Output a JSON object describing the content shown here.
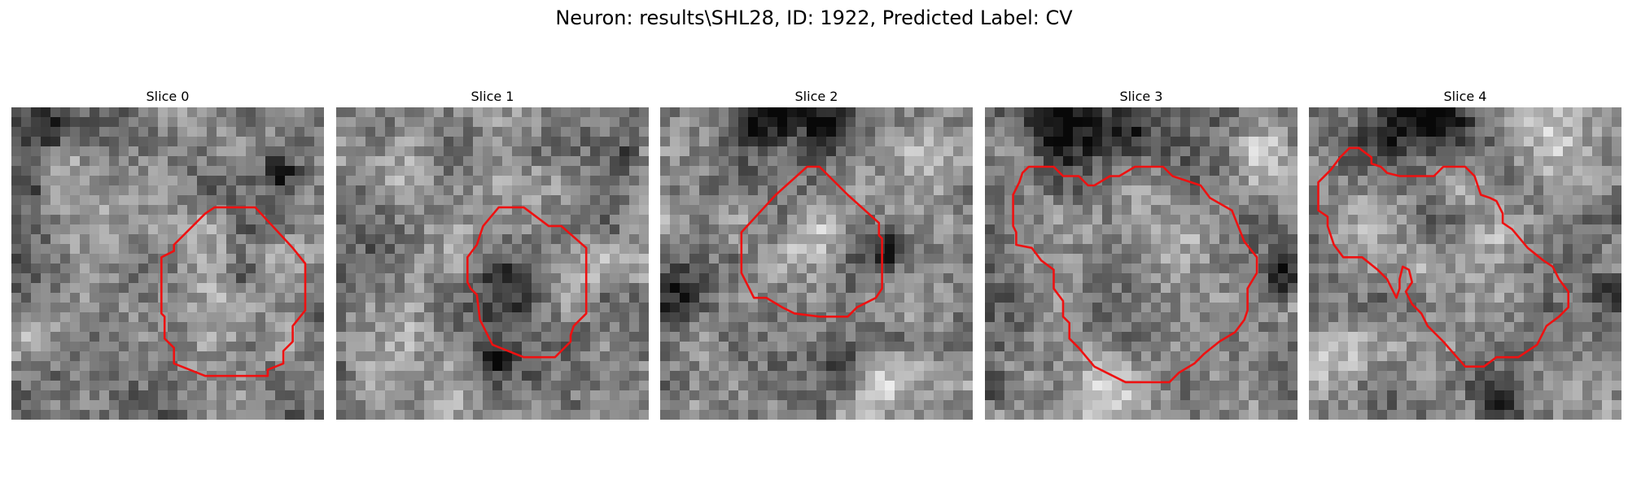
{
  "figure": {
    "title": "Neuron: results\\SHL28, ID: 1922, Predicted Label: CV"
  },
  "colors": {
    "contour": "#ee1111",
    "background": "#ffffff"
  },
  "slices": [
    {
      "title": "Slice 0",
      "seed": 11,
      "dark_spots": [
        [
          0.12,
          0.07,
          0.09
        ],
        [
          0.04,
          0.24,
          0.06
        ],
        [
          0.74,
          0.53,
          0.05
        ],
        [
          0.86,
          0.2,
          0.05
        ]
      ],
      "bright_spots": [
        [
          0.2,
          0.22,
          0.1
        ],
        [
          0.65,
          0.65,
          0.11
        ],
        [
          0.1,
          0.75,
          0.1
        ]
      ],
      "contour": [
        [
          0.65,
          0.32
        ],
        [
          0.78,
          0.32
        ],
        [
          0.9,
          0.45
        ],
        [
          0.94,
          0.5
        ],
        [
          0.94,
          0.65
        ],
        [
          0.9,
          0.7
        ],
        [
          0.9,
          0.75
        ],
        [
          0.87,
          0.78
        ],
        [
          0.87,
          0.82
        ],
        [
          0.82,
          0.84
        ],
        [
          0.82,
          0.86
        ],
        [
          0.62,
          0.86
        ],
        [
          0.52,
          0.82
        ],
        [
          0.52,
          0.77
        ],
        [
          0.49,
          0.74
        ],
        [
          0.49,
          0.67
        ],
        [
          0.48,
          0.66
        ],
        [
          0.48,
          0.48
        ],
        [
          0.52,
          0.46
        ],
        [
          0.52,
          0.44
        ],
        [
          0.62,
          0.34
        ]
      ]
    },
    {
      "title": "Slice 1",
      "seed": 23,
      "dark_spots": [
        [
          0.92,
          0.17,
          0.04
        ],
        [
          0.55,
          0.6,
          0.1
        ],
        [
          0.5,
          0.8,
          0.05
        ]
      ],
      "bright_spots": [
        [
          0.18,
          0.22,
          0.12
        ],
        [
          0.15,
          0.72,
          0.13
        ],
        [
          0.82,
          0.5,
          0.08
        ]
      ],
      "contour": [
        [
          0.52,
          0.32
        ],
        [
          0.6,
          0.32
        ],
        [
          0.68,
          0.38
        ],
        [
          0.72,
          0.38
        ],
        [
          0.8,
          0.45
        ],
        [
          0.8,
          0.66
        ],
        [
          0.76,
          0.7
        ],
        [
          0.75,
          0.73
        ],
        [
          0.75,
          0.75
        ],
        [
          0.7,
          0.8
        ],
        [
          0.6,
          0.8
        ],
        [
          0.5,
          0.76
        ],
        [
          0.47,
          0.7
        ],
        [
          0.46,
          0.68
        ],
        [
          0.45,
          0.6
        ],
        [
          0.43,
          0.58
        ],
        [
          0.42,
          0.56
        ],
        [
          0.42,
          0.48
        ],
        [
          0.45,
          0.44
        ],
        [
          0.47,
          0.38
        ]
      ]
    },
    {
      "title": "Slice 2",
      "seed": 37,
      "dark_spots": [
        [
          0.35,
          0.05,
          0.1
        ],
        [
          0.55,
          0.05,
          0.08
        ],
        [
          0.08,
          0.6,
          0.1
        ],
        [
          0.6,
          0.85,
          0.08
        ],
        [
          0.72,
          0.45,
          0.06
        ]
      ],
      "bright_spots": [
        [
          0.5,
          0.42,
          0.12
        ],
        [
          0.85,
          0.15,
          0.1
        ],
        [
          0.7,
          0.9,
          0.12
        ]
      ],
      "contour": [
        [
          0.47,
          0.19
        ],
        [
          0.51,
          0.19
        ],
        [
          0.6,
          0.28
        ],
        [
          0.7,
          0.37
        ],
        [
          0.7,
          0.41
        ],
        [
          0.71,
          0.42
        ],
        [
          0.71,
          0.58
        ],
        [
          0.69,
          0.61
        ],
        [
          0.65,
          0.63
        ],
        [
          0.63,
          0.64
        ],
        [
          0.6,
          0.67
        ],
        [
          0.51,
          0.67
        ],
        [
          0.43,
          0.66
        ],
        [
          0.39,
          0.64
        ],
        [
          0.34,
          0.61
        ],
        [
          0.3,
          0.61
        ],
        [
          0.27,
          0.55
        ],
        [
          0.26,
          0.53
        ],
        [
          0.26,
          0.4
        ],
        [
          0.37,
          0.28
        ]
      ]
    },
    {
      "title": "Slice 3",
      "seed": 53,
      "dark_spots": [
        [
          0.25,
          0.05,
          0.13
        ],
        [
          0.45,
          0.07,
          0.1
        ],
        [
          0.95,
          0.55,
          0.06
        ],
        [
          0.03,
          0.9,
          0.05
        ]
      ],
      "bright_spots": [
        [
          0.6,
          0.45,
          0.16
        ],
        [
          0.9,
          0.15,
          0.1
        ],
        [
          0.35,
          0.92,
          0.12
        ]
      ],
      "contour": [
        [
          0.14,
          0.19
        ],
        [
          0.22,
          0.19
        ],
        [
          0.25,
          0.22
        ],
        [
          0.3,
          0.22
        ],
        [
          0.33,
          0.25
        ],
        [
          0.35,
          0.25
        ],
        [
          0.4,
          0.22
        ],
        [
          0.43,
          0.22
        ],
        [
          0.48,
          0.19
        ],
        [
          0.57,
          0.19
        ],
        [
          0.6,
          0.22
        ],
        [
          0.69,
          0.25
        ],
        [
          0.72,
          0.29
        ],
        [
          0.79,
          0.33
        ],
        [
          0.81,
          0.38
        ],
        [
          0.83,
          0.43
        ],
        [
          0.87,
          0.48
        ],
        [
          0.87,
          0.53
        ],
        [
          0.84,
          0.58
        ],
        [
          0.84,
          0.65
        ],
        [
          0.83,
          0.68
        ],
        [
          0.8,
          0.72
        ],
        [
          0.75,
          0.75
        ],
        [
          0.7,
          0.79
        ],
        [
          0.67,
          0.82
        ],
        [
          0.62,
          0.85
        ],
        [
          0.59,
          0.88
        ],
        [
          0.45,
          0.88
        ],
        [
          0.39,
          0.85
        ],
        [
          0.35,
          0.83
        ],
        [
          0.3,
          0.77
        ],
        [
          0.27,
          0.74
        ],
        [
          0.27,
          0.69
        ],
        [
          0.25,
          0.67
        ],
        [
          0.25,
          0.62
        ],
        [
          0.22,
          0.58
        ],
        [
          0.22,
          0.52
        ],
        [
          0.18,
          0.49
        ],
        [
          0.15,
          0.45
        ],
        [
          0.1,
          0.44
        ],
        [
          0.1,
          0.4
        ],
        [
          0.09,
          0.38
        ],
        [
          0.09,
          0.28
        ],
        [
          0.1,
          0.26
        ],
        [
          0.11,
          0.24
        ],
        [
          0.12,
          0.21
        ]
      ]
    },
    {
      "title": "Slice 4",
      "seed": 71,
      "dark_spots": [
        [
          0.3,
          0.06,
          0.13
        ],
        [
          0.45,
          0.05,
          0.1
        ],
        [
          0.98,
          0.6,
          0.08
        ],
        [
          0.6,
          0.95,
          0.06
        ]
      ],
      "bright_spots": [
        [
          0.78,
          0.13,
          0.12
        ],
        [
          0.05,
          0.8,
          0.12
        ],
        [
          0.55,
          0.45,
          0.12
        ]
      ],
      "contour": [
        [
          0.1,
          0.16
        ],
        [
          0.13,
          0.13
        ],
        [
          0.16,
          0.13
        ],
        [
          0.2,
          0.16
        ],
        [
          0.2,
          0.18
        ],
        [
          0.23,
          0.19
        ],
        [
          0.25,
          0.21
        ],
        [
          0.29,
          0.22
        ],
        [
          0.4,
          0.22
        ],
        [
          0.43,
          0.19
        ],
        [
          0.5,
          0.19
        ],
        [
          0.53,
          0.22
        ],
        [
          0.55,
          0.28
        ],
        [
          0.58,
          0.29
        ],
        [
          0.6,
          0.3
        ],
        [
          0.62,
          0.34
        ],
        [
          0.62,
          0.37
        ],
        [
          0.65,
          0.39
        ],
        [
          0.7,
          0.45
        ],
        [
          0.75,
          0.49
        ],
        [
          0.78,
          0.51
        ],
        [
          0.8,
          0.55
        ],
        [
          0.83,
          0.59
        ],
        [
          0.83,
          0.64
        ],
        [
          0.8,
          0.67
        ],
        [
          0.76,
          0.7
        ],
        [
          0.73,
          0.76
        ],
        [
          0.67,
          0.8
        ],
        [
          0.6,
          0.8
        ],
        [
          0.56,
          0.83
        ],
        [
          0.5,
          0.83
        ],
        [
          0.43,
          0.75
        ],
        [
          0.38,
          0.7
        ],
        [
          0.36,
          0.66
        ],
        [
          0.33,
          0.63
        ],
        [
          0.31,
          0.59
        ],
        [
          0.33,
          0.56
        ],
        [
          0.32,
          0.52
        ],
        [
          0.3,
          0.51
        ],
        [
          0.29,
          0.55
        ],
        [
          0.29,
          0.58
        ],
        [
          0.28,
          0.61
        ],
        [
          0.27,
          0.59
        ],
        [
          0.25,
          0.55
        ],
        [
          0.22,
          0.52
        ],
        [
          0.17,
          0.48
        ],
        [
          0.11,
          0.48
        ],
        [
          0.08,
          0.44
        ],
        [
          0.06,
          0.38
        ],
        [
          0.06,
          0.35
        ],
        [
          0.03,
          0.33
        ],
        [
          0.03,
          0.24
        ],
        [
          0.07,
          0.2
        ]
      ]
    }
  ]
}
